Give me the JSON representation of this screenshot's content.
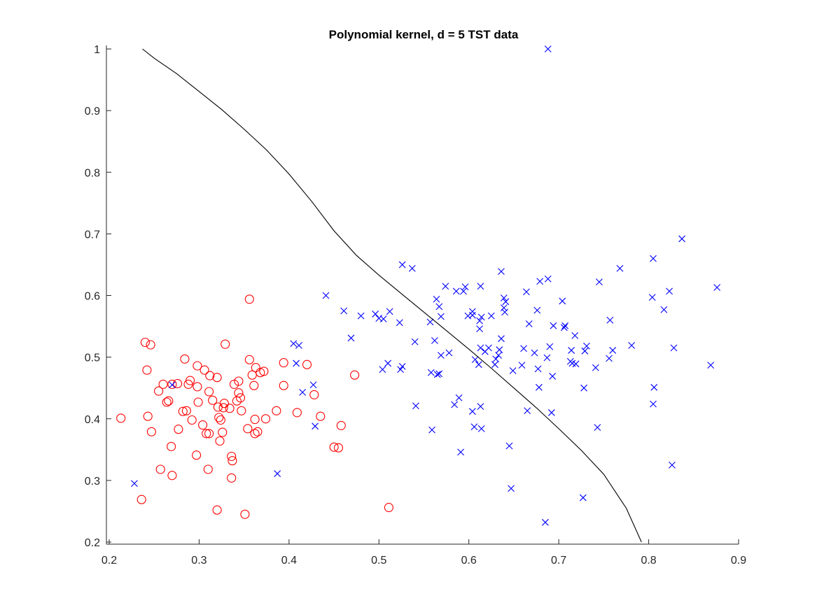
{
  "chart_data": {
    "type": "scatter",
    "title": "Polynomial kernel, d = 5 TST data",
    "xlabel": "",
    "ylabel": "",
    "xlim": [
      0.2,
      0.9
    ],
    "ylim": [
      0.2,
      1.0
    ],
    "x_ticks": [
      "0.2",
      "0.3",
      "0.4",
      "0.5",
      "0.6",
      "0.7",
      "0.8",
      "0.9"
    ],
    "y_ticks": [
      "0.2",
      "0.3",
      "0.4",
      "0.5",
      "0.6",
      "0.7",
      "0.8",
      "0.9",
      "1"
    ],
    "grid": false,
    "box": false,
    "colors": {
      "circles": "#ff0000",
      "crosses": "#0000ff",
      "boundary": "#000000",
      "axes": "#262626"
    },
    "series": [
      {
        "marker": "circle",
        "color": "#ff0000",
        "points": [
          [
            0.213,
            0.401
          ],
          [
            0.236,
            0.269
          ],
          [
            0.24,
            0.524
          ],
          [
            0.242,
            0.479
          ],
          [
            0.243,
            0.404
          ],
          [
            0.246,
            0.52
          ],
          [
            0.247,
            0.379
          ],
          [
            0.255,
            0.445
          ],
          [
            0.257,
            0.318
          ],
          [
            0.26,
            0.456
          ],
          [
            0.264,
            0.427
          ],
          [
            0.266,
            0.429
          ],
          [
            0.269,
            0.355
          ],
          [
            0.27,
            0.456
          ],
          [
            0.27,
            0.308
          ],
          [
            0.276,
            0.457
          ],
          [
            0.277,
            0.383
          ],
          [
            0.282,
            0.412
          ],
          [
            0.284,
            0.497
          ],
          [
            0.286,
            0.413
          ],
          [
            0.288,
            0.456
          ],
          [
            0.29,
            0.462
          ],
          [
            0.292,
            0.398
          ],
          [
            0.297,
            0.341
          ],
          [
            0.298,
            0.486
          ],
          [
            0.298,
            0.452
          ],
          [
            0.299,
            0.427
          ],
          [
            0.304,
            0.39
          ],
          [
            0.306,
            0.479
          ],
          [
            0.308,
            0.376
          ],
          [
            0.31,
            0.318
          ],
          [
            0.311,
            0.444
          ],
          [
            0.311,
            0.376
          ],
          [
            0.312,
            0.47
          ],
          [
            0.315,
            0.43
          ],
          [
            0.32,
            0.467
          ],
          [
            0.32,
            0.252
          ],
          [
            0.321,
            0.419
          ],
          [
            0.322,
            0.402
          ],
          [
            0.323,
            0.364
          ],
          [
            0.324,
            0.398
          ],
          [
            0.326,
            0.378
          ],
          [
            0.327,
            0.418
          ],
          [
            0.328,
            0.425
          ],
          [
            0.329,
            0.521
          ],
          [
            0.334,
            0.417
          ],
          [
            0.336,
            0.304
          ],
          [
            0.336,
            0.339
          ],
          [
            0.337,
            0.332
          ],
          [
            0.339,
            0.456
          ],
          [
            0.342,
            0.429
          ],
          [
            0.344,
            0.461
          ],
          [
            0.344,
            0.442
          ],
          [
            0.346,
            0.434
          ],
          [
            0.347,
            0.413
          ],
          [
            0.351,
            0.245
          ],
          [
            0.354,
            0.384
          ],
          [
            0.356,
            0.594
          ],
          [
            0.356,
            0.496
          ],
          [
            0.359,
            0.471
          ],
          [
            0.361,
            0.454
          ],
          [
            0.362,
            0.399
          ],
          [
            0.362,
            0.376
          ],
          [
            0.363,
            0.483
          ],
          [
            0.365,
            0.379
          ],
          [
            0.368,
            0.475
          ],
          [
            0.372,
            0.477
          ],
          [
            0.374,
            0.4
          ],
          [
            0.386,
            0.413
          ],
          [
            0.394,
            0.491
          ],
          [
            0.394,
            0.454
          ],
          [
            0.409,
            0.41
          ],
          [
            0.42,
            0.488
          ],
          [
            0.428,
            0.439
          ],
          [
            0.435,
            0.404
          ],
          [
            0.45,
            0.354
          ],
          [
            0.455,
            0.353
          ],
          [
            0.458,
            0.389
          ],
          [
            0.473,
            0.471
          ],
          [
            0.511,
            0.256
          ]
        ]
      },
      {
        "marker": "cross",
        "color": "#0000ff",
        "points": [
          [
            0.228,
            0.295
          ],
          [
            0.27,
            0.455
          ],
          [
            0.387,
            0.311
          ],
          [
            0.405,
            0.522
          ],
          [
            0.408,
            0.49
          ],
          [
            0.411,
            0.519
          ],
          [
            0.415,
            0.443
          ],
          [
            0.427,
            0.455
          ],
          [
            0.429,
            0.388
          ],
          [
            0.441,
            0.6
          ],
          [
            0.461,
            0.575
          ],
          [
            0.469,
            0.531
          ],
          [
            0.48,
            0.567
          ],
          [
            0.496,
            0.57
          ],
          [
            0.5,
            0.563
          ],
          [
            0.504,
            0.48
          ],
          [
            0.505,
            0.562
          ],
          [
            0.51,
            0.49
          ],
          [
            0.512,
            0.574
          ],
          [
            0.523,
            0.556
          ],
          [
            0.524,
            0.48
          ],
          [
            0.526,
            0.65
          ],
          [
            0.526,
            0.485
          ],
          [
            0.537,
            0.644
          ],
          [
            0.54,
            0.525
          ],
          [
            0.541,
            0.421
          ],
          [
            0.557,
            0.557
          ],
          [
            0.558,
            0.475
          ],
          [
            0.559,
            0.382
          ],
          [
            0.562,
            0.527
          ],
          [
            0.564,
            0.594
          ],
          [
            0.565,
            0.472
          ],
          [
            0.567,
            0.473
          ],
          [
            0.567,
            0.582
          ],
          [
            0.569,
            0.503
          ],
          [
            0.569,
            0.566
          ],
          [
            0.574,
            0.615
          ],
          [
            0.578,
            0.507
          ],
          [
            0.584,
            0.423
          ],
          [
            0.586,
            0.607
          ],
          [
            0.589,
            0.434
          ],
          [
            0.591,
            0.346
          ],
          [
            0.594,
            0.607
          ],
          [
            0.596,
            0.614
          ],
          [
            0.599,
            0.567
          ],
          [
            0.604,
            0.574
          ],
          [
            0.604,
            0.568
          ],
          [
            0.604,
            0.412
          ],
          [
            0.606,
            0.387
          ],
          [
            0.607,
            0.496
          ],
          [
            0.611,
            0.488
          ],
          [
            0.612,
            0.546
          ],
          [
            0.612,
            0.559
          ],
          [
            0.613,
            0.42
          ],
          [
            0.613,
            0.515
          ],
          [
            0.613,
            0.615
          ],
          [
            0.614,
            0.565
          ],
          [
            0.614,
            0.384
          ],
          [
            0.618,
            0.509
          ],
          [
            0.622,
            0.515
          ],
          [
            0.625,
            0.567
          ],
          [
            0.629,
            0.488
          ],
          [
            0.63,
            0.497
          ],
          [
            0.633,
            0.503
          ],
          [
            0.634,
            0.512
          ],
          [
            0.636,
            0.53
          ],
          [
            0.636,
            0.639
          ],
          [
            0.639,
            0.58
          ],
          [
            0.639,
            0.596
          ],
          [
            0.64,
            0.573
          ],
          [
            0.641,
            0.59
          ],
          [
            0.645,
            0.356
          ],
          [
            0.647,
            0.287
          ],
          [
            0.649,
            0.478
          ],
          [
            0.659,
            0.487
          ],
          [
            0.661,
            0.514
          ],
          [
            0.664,
            0.606
          ],
          [
            0.665,
            0.413
          ],
          [
            0.667,
            0.554
          ],
          [
            0.673,
            0.507
          ],
          [
            0.676,
            0.576
          ],
          [
            0.677,
            0.481
          ],
          [
            0.678,
            0.451
          ],
          [
            0.679,
            0.623
          ],
          [
            0.685,
            0.232
          ],
          [
            0.687,
            0.499
          ],
          [
            0.688,
            0.627
          ],
          [
            0.688,
            1.0
          ],
          [
            0.69,
            0.517
          ],
          [
            0.692,
            0.41
          ],
          [
            0.693,
            0.469
          ],
          [
            0.694,
            0.551
          ],
          [
            0.704,
            0.591
          ],
          [
            0.706,
            0.548
          ],
          [
            0.707,
            0.551
          ],
          [
            0.713,
            0.493
          ],
          [
            0.714,
            0.511
          ],
          [
            0.715,
            0.49
          ],
          [
            0.718,
            0.535
          ],
          [
            0.719,
            0.489
          ],
          [
            0.727,
            0.272
          ],
          [
            0.728,
            0.45
          ],
          [
            0.729,
            0.51
          ],
          [
            0.731,
            0.518
          ],
          [
            0.741,
            0.483
          ],
          [
            0.743,
            0.386
          ],
          [
            0.745,
            0.622
          ],
          [
            0.756,
            0.498
          ],
          [
            0.757,
            0.56
          ],
          [
            0.76,
            0.511
          ],
          [
            0.768,
            0.644
          ],
          [
            0.781,
            0.519
          ],
          [
            0.804,
            0.597
          ],
          [
            0.805,
            0.424
          ],
          [
            0.805,
            0.66
          ],
          [
            0.806,
            0.451
          ],
          [
            0.817,
            0.577
          ],
          [
            0.823,
            0.607
          ],
          [
            0.826,
            0.325
          ],
          [
            0.828,
            0.515
          ],
          [
            0.837,
            0.692
          ],
          [
            0.869,
            0.487
          ],
          [
            0.876,
            0.613
          ]
        ]
      },
      {
        "marker": "line",
        "color": "#000000",
        "points": [
          [
            0.237,
            1.0
          ],
          [
            0.25,
            0.985
          ],
          [
            0.275,
            0.96
          ],
          [
            0.3,
            0.931
          ],
          [
            0.325,
            0.902
          ],
          [
            0.35,
            0.87
          ],
          [
            0.375,
            0.836
          ],
          [
            0.4,
            0.797
          ],
          [
            0.425,
            0.753
          ],
          [
            0.45,
            0.705
          ],
          [
            0.475,
            0.665
          ],
          [
            0.5,
            0.633
          ],
          [
            0.525,
            0.603
          ],
          [
            0.55,
            0.573
          ],
          [
            0.575,
            0.543
          ],
          [
            0.6,
            0.513
          ],
          [
            0.625,
            0.482
          ],
          [
            0.65,
            0.45
          ],
          [
            0.675,
            0.418
          ],
          [
            0.7,
            0.384
          ],
          [
            0.725,
            0.349
          ],
          [
            0.75,
            0.31
          ],
          [
            0.775,
            0.255
          ],
          [
            0.792,
            0.2
          ]
        ]
      }
    ]
  }
}
